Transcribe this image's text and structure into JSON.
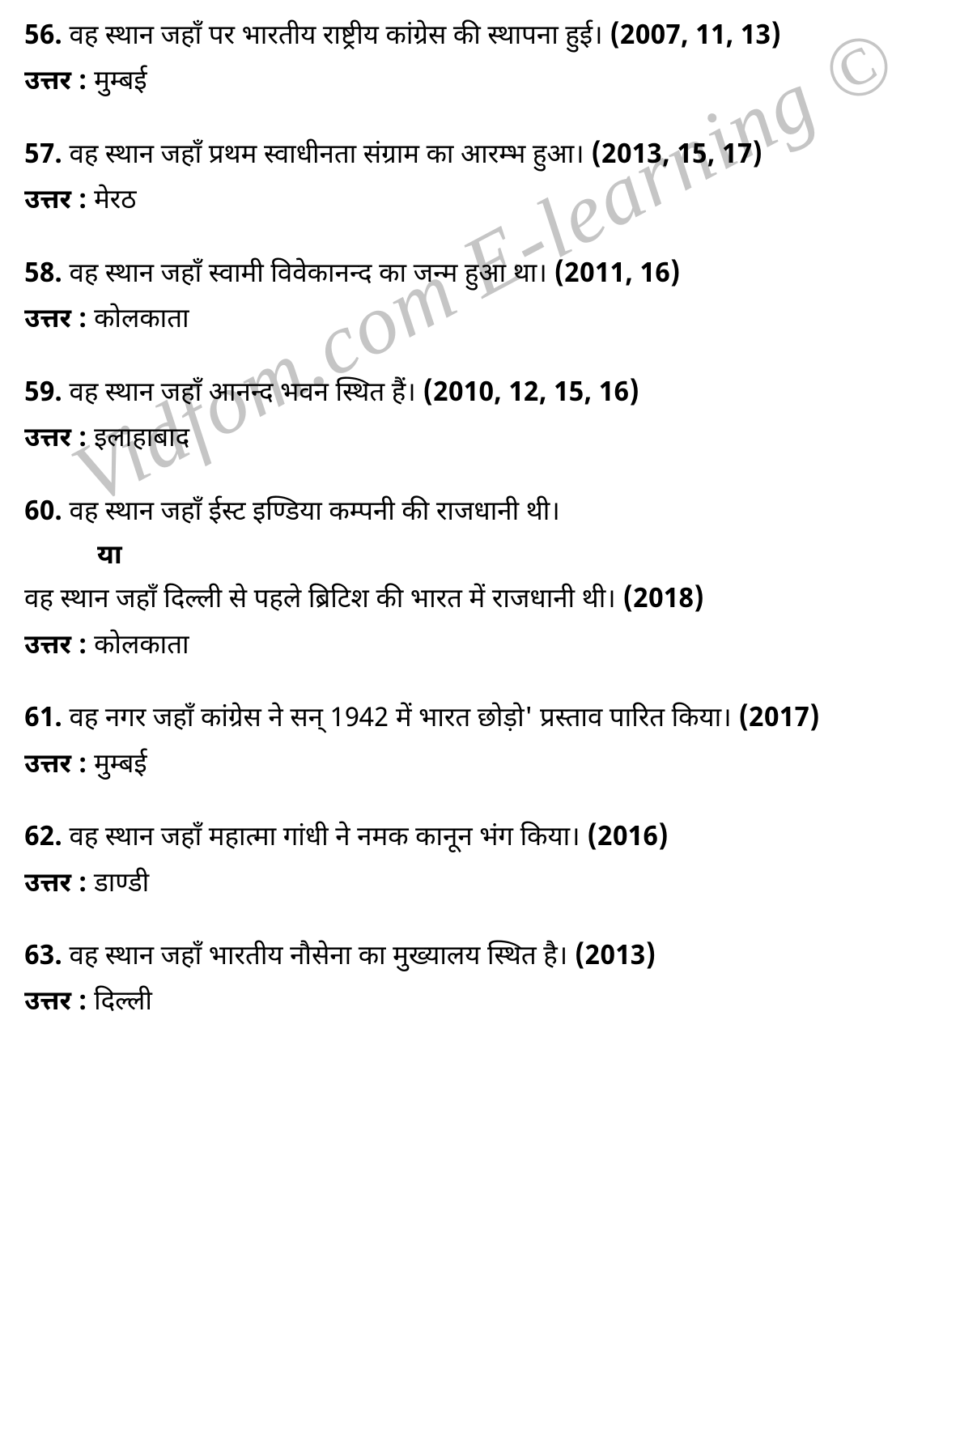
{
  "watermark": {
    "text": "Vidfom.com E-learning ©",
    "color": "#808080",
    "fontsize": 105,
    "rotation": -28
  },
  "styling": {
    "background_color": "#ffffff",
    "text_color": "#000000",
    "body_fontsize": 33,
    "number_fontweight": "bold",
    "year_fontweight": "bold",
    "answer_label_fontweight": "bold",
    "line_height": 1.65,
    "block_margin_bottom": 36
  },
  "answer_label": "उत्तर : ",
  "or_label": "या",
  "questions": [
    {
      "number": "56.",
      "text": " वह स्थान जहाँ पर भारतीय राष्ट्रीय कांग्रेस की स्थापना हुई। ",
      "year": "(2007, 11, 13)",
      "answer": "मुम्बई"
    },
    {
      "number": "57.",
      "text": " वह स्थान जहाँ प्रथम स्वाधीनता संग्राम का आरम्भ हुआ। ",
      "year": "(2013, 15, 17)",
      "answer": "मेरठ"
    },
    {
      "number": "58.",
      "text": " वह स्थान जहाँ स्वामी विवेकानन्द का जन्म हुआ था। ",
      "year": "(2011, 16)",
      "answer": "कोलकाता"
    },
    {
      "number": "59.",
      "text": " वह स्थान जहाँ आनन्द भवन स्थित हैं। ",
      "year": "(2010, 12, 15, 16)",
      "answer": "इलाहाबाद"
    },
    {
      "number": "60.",
      "text": " वह स्थान जहाँ ईस्ट इण्डिया कम्पनी की राजधानी थी।",
      "year": "",
      "has_or": true,
      "or_text": "वह स्थान जहाँ दिल्ली से पहले ब्रिटिश की भारत में राजधानी थी। ",
      "or_year": "(2018)",
      "answer": "कोलकाता"
    },
    {
      "number": "61.",
      "text": " वह नगर जहाँ कांग्रेस ने सन् 1942 में भारत छोड़ो' प्रस्ताव पारित किया। ",
      "year": "(2017)",
      "answer": "मुम्बई"
    },
    {
      "number": "62.",
      "text": " वह स्थान जहाँ महात्मा गांधी ने नमक कानून भंग किया। ",
      "year": "(2016)",
      "answer": "डाण्डी"
    },
    {
      "number": "63.",
      "text": " वह स्थान जहाँ भारतीय नौसेना का मुख्यालय स्थित है। ",
      "year": "(2013)",
      "answer": "दिल्ली"
    }
  ]
}
